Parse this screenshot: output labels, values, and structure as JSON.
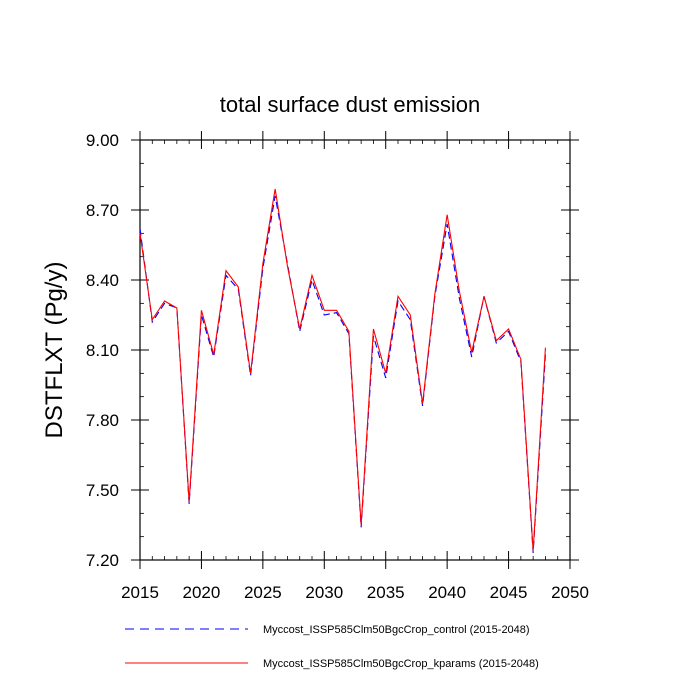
{
  "chart_data": {
    "type": "line",
    "title": "total surface dust emission",
    "xlabel": "",
    "ylabel": "DSTFLXT  (Pg/y)",
    "xlim": [
      2015,
      2050
    ],
    "ylim": [
      7.2,
      9.0
    ],
    "xticks": [
      "2015",
      "2020",
      "2025",
      "2030",
      "2035",
      "2040",
      "2045",
      "2050"
    ],
    "yticks": [
      "7.20",
      "7.50",
      "7.80",
      "8.10",
      "8.40",
      "8.70",
      "9.00"
    ],
    "x": [
      2015,
      2016,
      2017,
      2018,
      2019,
      2020,
      2021,
      2022,
      2023,
      2024,
      2025,
      2026,
      2027,
      2028,
      2029,
      2030,
      2031,
      2032,
      2033,
      2034,
      2035,
      2036,
      2037,
      2038,
      2039,
      2040,
      2041,
      2042,
      2043,
      2044,
      2045,
      2046,
      2047,
      2048
    ],
    "series": [
      {
        "name": "Myccost_ISSP585Clm50BgcCrop_control (2015-2048)",
        "color": "#0000ff",
        "style": "dashed",
        "values": [
          8.62,
          8.22,
          8.3,
          8.28,
          7.44,
          8.25,
          8.07,
          8.42,
          8.36,
          7.99,
          8.45,
          8.76,
          8.47,
          8.18,
          8.4,
          8.25,
          8.26,
          8.17,
          7.34,
          8.16,
          7.98,
          8.31,
          8.23,
          7.86,
          8.33,
          8.64,
          8.32,
          8.07,
          8.33,
          8.13,
          8.18,
          8.05,
          7.23,
          8.08
        ]
      },
      {
        "name": "Myccost_ISSP585Clm50BgcCrop_kparams (2015-2048)",
        "color": "#ff0000",
        "style": "solid",
        "values": [
          8.6,
          8.23,
          8.31,
          8.28,
          7.45,
          8.27,
          8.08,
          8.44,
          8.37,
          8.0,
          8.47,
          8.79,
          8.46,
          8.19,
          8.42,
          8.27,
          8.27,
          8.18,
          7.35,
          8.19,
          8.0,
          8.33,
          8.25,
          7.87,
          8.34,
          8.68,
          8.35,
          8.09,
          8.33,
          8.14,
          8.19,
          8.06,
          7.24,
          8.11
        ]
      }
    ],
    "legend_position": "bottom"
  }
}
